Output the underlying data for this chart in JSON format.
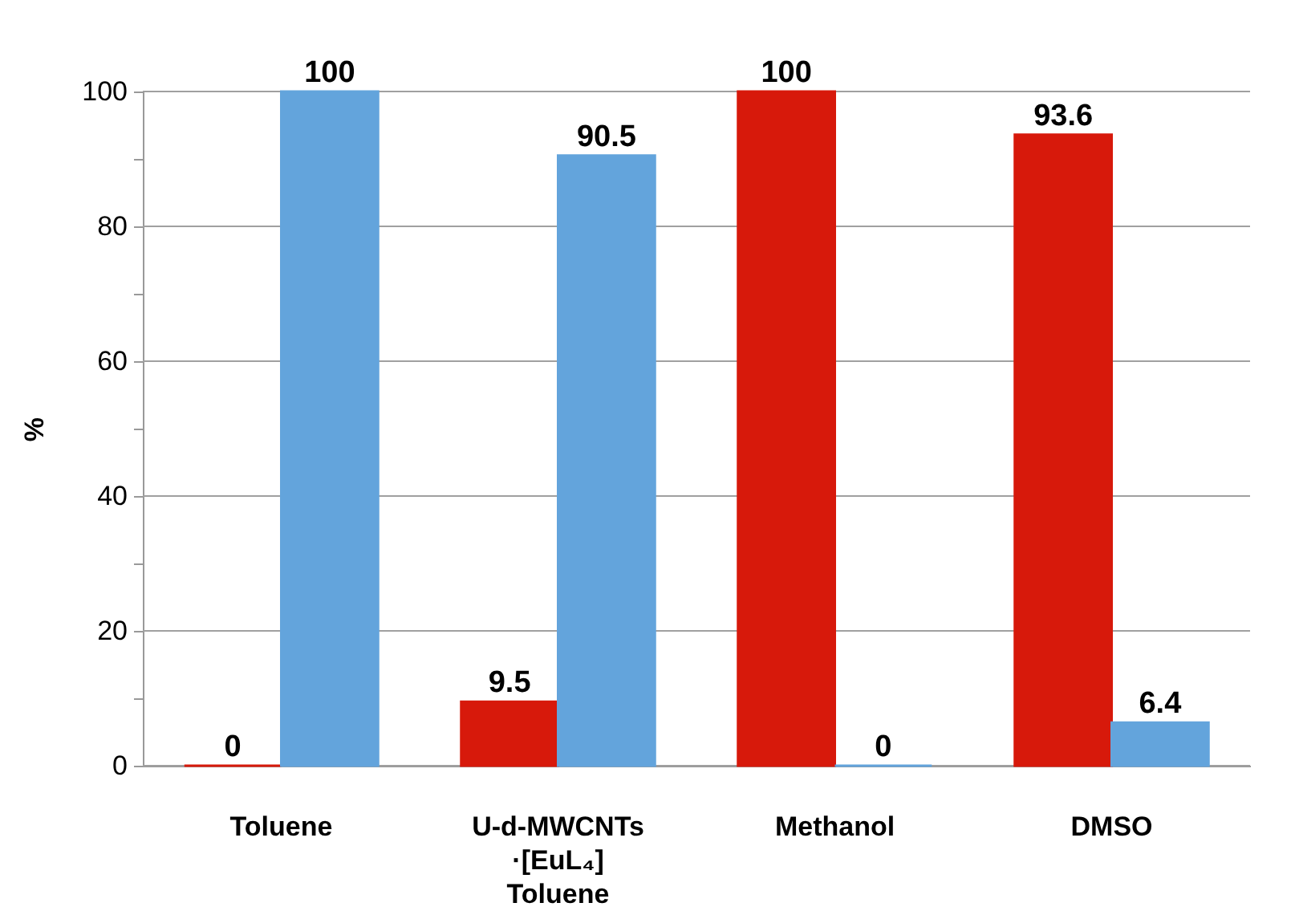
{
  "chart_data": {
    "type": "bar",
    "ylabel": "%",
    "categories": [
      "Toluene",
      "U-d-MWCNTs\n·[EuL₄]\nToluene",
      "Methanol",
      "DMSO"
    ],
    "series": [
      {
        "color": "#d7190b",
        "values": [
          0,
          9.5,
          100,
          93.6
        ]
      },
      {
        "color": "#63a4dc",
        "values": [
          100,
          90.5,
          0,
          6.4
        ]
      }
    ],
    "ylim": [
      0,
      100
    ],
    "yticks": [
      0,
      {
        "value": 10,
        "label": null
      },
      20,
      {
        "value": 30,
        "label": null
      },
      40,
      {
        "value": 50,
        "label": null
      },
      60,
      {
        "value": 70,
        "label": null
      },
      80,
      {
        "value": 90,
        "label": null
      },
      100
    ],
    "grid": "y",
    "data_labels": true,
    "legend": false
  }
}
